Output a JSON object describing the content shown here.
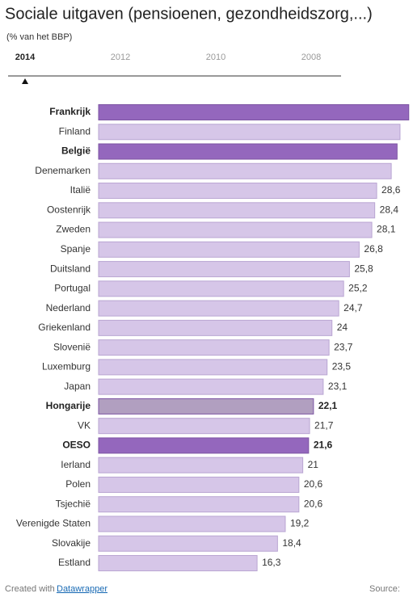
{
  "chart_data": {
    "type": "bar",
    "title": "Sociale uitgaven (pensioenen, gezondheidszorg,...)",
    "subtitle": "(% van het BBP)",
    "years": [
      "2014",
      "2012",
      "2010",
      "2008"
    ],
    "categories": [
      "Frankrijk",
      "Finland",
      "België",
      "Denemarken",
      "Italië",
      "Oostenrijk",
      "Zweden",
      "Spanje",
      "Duitsland",
      "Portugal",
      "Nederland",
      "Griekenland",
      "Slovenië",
      "Luxemburg",
      "Japan",
      "Hongarije",
      "VK",
      "OESO",
      "Ierland",
      "Polen",
      "Tsjechië",
      "Verenigde Staten",
      "Slovakije",
      "Estland"
    ],
    "values": [
      31.9,
      31,
      30.7,
      30.1,
      28.6,
      28.4,
      28.1,
      26.8,
      25.8,
      25.2,
      24.7,
      24,
      23.7,
      23.5,
      23.1,
      22.1,
      21.7,
      21.6,
      21,
      20.6,
      20.6,
      19.2,
      18.4,
      16.3
    ],
    "value_labels": [
      null,
      null,
      null,
      null,
      "28,6",
      "28,4",
      "28,1",
      "26,8",
      "25,8",
      "25,2",
      "24,7",
      "24",
      "23,7",
      "23,5",
      "23,1",
      "22,1",
      "21,7",
      "21,6",
      "21",
      "20,6",
      "20,6",
      "19,2",
      "18,4",
      "16,3"
    ],
    "colors": [
      "#9467bd",
      "#d6c6e8",
      "#9467bd",
      "#d6c6e8",
      "#d6c6e8",
      "#d6c6e8",
      "#d6c6e8",
      "#d6c6e8",
      "#d6c6e8",
      "#d6c6e8",
      "#d6c6e8",
      "#d6c6e8",
      "#d6c6e8",
      "#d6c6e8",
      "#d6c6e8",
      "#b19fc0",
      "#d6c6e8",
      "#9467bd",
      "#d6c6e8",
      "#d6c6e8",
      "#d6c6e8",
      "#d6c6e8",
      "#d6c6e8",
      "#d6c6e8"
    ],
    "bold": [
      true,
      false,
      true,
      false,
      false,
      false,
      false,
      false,
      false,
      false,
      false,
      false,
      false,
      false,
      false,
      true,
      false,
      true,
      false,
      false,
      false,
      false,
      false,
      false
    ],
    "footer": {
      "credit": "Created with",
      "link": "Datawrapper",
      "source": "Source:"
    }
  }
}
